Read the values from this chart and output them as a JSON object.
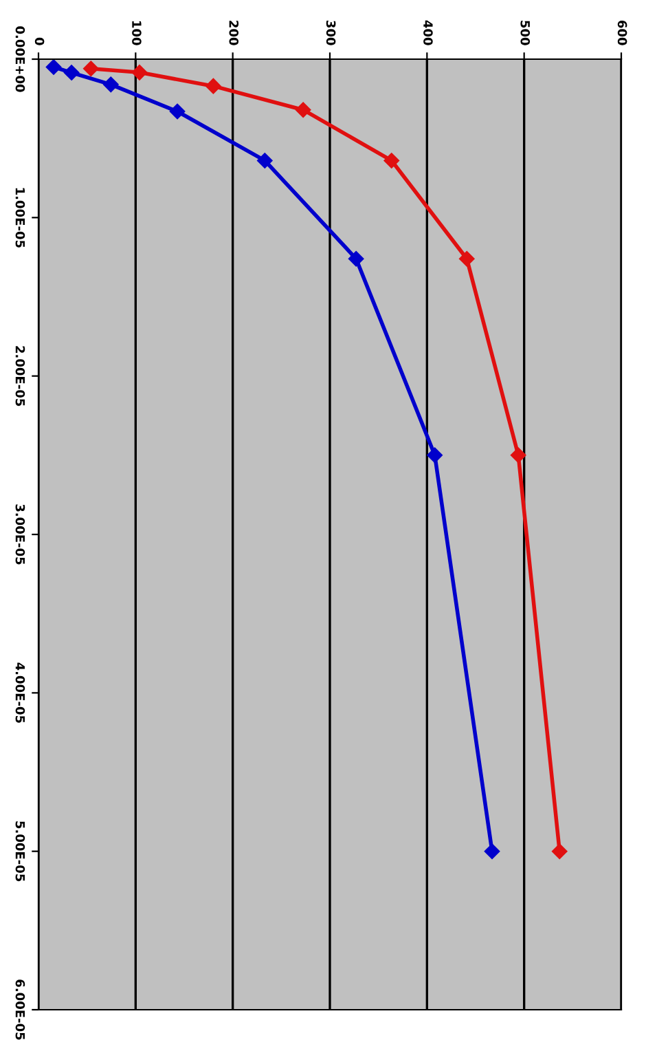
{
  "chart_data": {
    "type": "line",
    "series": [
      {
        "color": "#0000cc",
        "x": [
          15.6,
          34,
          74.5,
          143,
          233,
          327,
          408,
          467
        ],
        "values": [
          5e-07,
          8.5e-07,
          1.6e-06,
          3.3e-06,
          6.4e-06,
          1.26e-05,
          2.5e-05,
          5e-05
        ]
      },
      {
        "color": "#e01010",
        "x": [
          54,
          104,
          180,
          272.5,
          363.5,
          441,
          494,
          536.5
        ],
        "values": [
          6e-07,
          8.4e-07,
          1.7e-06,
          3.2e-06,
          6.4e-06,
          1.26e-05,
          2.5e-05,
          5e-05
        ]
      }
    ],
    "xlim": [
      0,
      600
    ],
    "xticks": [
      0,
      100,
      200,
      300,
      400,
      500,
      600
    ],
    "ylim": [
      6e-05,
      0
    ],
    "yticks": [
      {
        "value": 0,
        "label": "0.00E+00"
      },
      {
        "value": 1e-05,
        "label": "1.00E-05"
      },
      {
        "value": 2e-05,
        "label": "2.00E-05"
      },
      {
        "value": 3e-05,
        "label": "3.00E-05"
      },
      {
        "value": 4e-05,
        "label": "4.00E-05"
      },
      {
        "value": 5e-05,
        "label": "5.00E-05"
      },
      {
        "value": 6e-05,
        "label": "6.00E-05"
      }
    ],
    "grid": "x",
    "marker": "diamond",
    "line_style": "solid"
  }
}
